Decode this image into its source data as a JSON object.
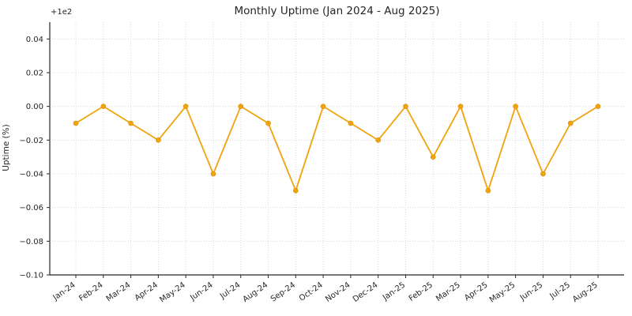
{
  "chart_data": {
    "type": "line",
    "title": "Monthly Uptime (Jan 2024 - Aug 2025)",
    "xlabel": "",
    "ylabel": "Uptime (%)",
    "offset_text": "+1e2",
    "offset_base": 100,
    "categories": [
      "Jan-24",
      "Feb-24",
      "Mar-24",
      "Apr-24",
      "May-24",
      "Jun-24",
      "Jul-24",
      "Aug-24",
      "Sep-24",
      "Oct-24",
      "Nov-24",
      "Dec-24",
      "Jan-25",
      "Feb-25",
      "Mar-25",
      "Apr-25",
      "May-25",
      "Jun-25",
      "Jul-25",
      "Aug-25"
    ],
    "values": [
      99.99,
      100.0,
      99.99,
      99.98,
      100.0,
      99.96,
      100.0,
      99.99,
      99.95,
      100.0,
      99.99,
      99.98,
      100.0,
      99.97,
      100.0,
      99.95,
      100.0,
      99.96,
      99.99,
      100.0
    ],
    "ylim": [
      -0.1,
      0.05
    ],
    "yticks": [
      {
        "v": 0.04,
        "label": "0.04"
      },
      {
        "v": 0.02,
        "label": "0.02"
      },
      {
        "v": 0.0,
        "label": "0.00"
      },
      {
        "v": -0.02,
        "label": "−0.02"
      },
      {
        "v": -0.04,
        "label": "−0.04"
      },
      {
        "v": -0.06,
        "label": "−0.06"
      },
      {
        "v": -0.08,
        "label": "−0.08"
      },
      {
        "v": -0.1,
        "label": "−0.10"
      }
    ],
    "grid": true,
    "legend": null,
    "colors": {
      "line": "#F0A30A",
      "marker": "#F0A30A",
      "grid": "#d2d2d2",
      "spine": "#262626",
      "text": "#262626",
      "background": "#ffffff"
    }
  }
}
